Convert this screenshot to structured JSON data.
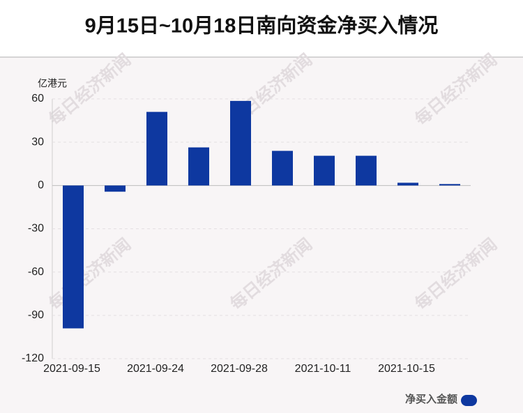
{
  "chart_data": {
    "type": "bar",
    "title": "9月15日~10月18日南向资金净买入情况",
    "y_unit": "亿港元",
    "watermark": "每日经济新闻",
    "categories": [
      "2021-09-15",
      null,
      "2021-09-24",
      null,
      "2021-09-28",
      null,
      "2021-10-11",
      null,
      "2021-10-15",
      null
    ],
    "series": [
      {
        "name": "净买入金额",
        "color": "#0e38a0",
        "values": [
          -99,
          -4.3,
          51,
          26.4,
          58.6,
          24,
          20.6,
          20.6,
          1.9,
          1
        ]
      }
    ],
    "ylim": [
      -120,
      60
    ],
    "yticks": [
      -120,
      -90,
      -60,
      -30,
      0,
      30,
      60
    ],
    "grid": true,
    "legend": "bottom-right"
  }
}
